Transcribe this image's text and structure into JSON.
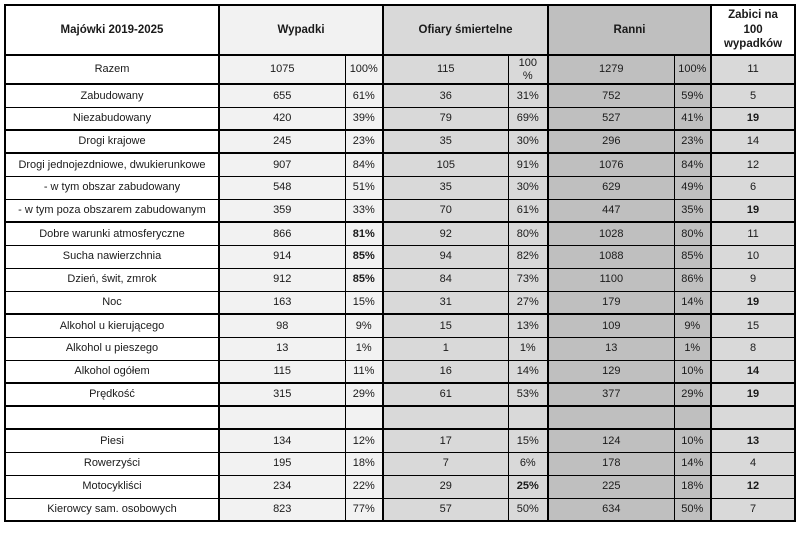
{
  "colors": {
    "border": "#000000",
    "text": "#1a1a1a",
    "col_label_bg": "#ffffff",
    "col_wypadki_bg": "#f2f2f2",
    "col_ofiary_bg": "#d9d9d9",
    "col_ranni_bg": "#bfbfbf",
    "col_zabici_bg": "#d9d9d9",
    "header_zabici_bg": "#ffffff"
  },
  "chart_data": {
    "type": "table",
    "title": "Majówki 2019-2025",
    "legend_position": "none",
    "column_groups": [
      {
        "label": "Majówki 2019-2025",
        "span": 1
      },
      {
        "label": "Wypadki",
        "span": 2
      },
      {
        "label": "Ofiary śmiertelne",
        "span": 2
      },
      {
        "label": "Ranni",
        "span": 2
      },
      {
        "label": "Zabici na\n100\nwypadków",
        "span": 1
      }
    ],
    "rows": [
      {
        "label": "Razem",
        "wypadki": "1075",
        "wypadki_pct": "100%",
        "ofiary": "115",
        "ofiary_pct": "100\n%",
        "ranni": "1279",
        "ranni_pct": "100%",
        "zabici": "11",
        "bold": [],
        "thick_bottom": true,
        "empty": false
      },
      {
        "label": "Zabudowany",
        "wypadki": "655",
        "wypadki_pct": "61%",
        "ofiary": "36",
        "ofiary_pct": "31%",
        "ranni": "752",
        "ranni_pct": "59%",
        "zabici": "5",
        "bold": [],
        "thick_bottom": false,
        "empty": false
      },
      {
        "label": "Niezabudowany",
        "wypadki": "420",
        "wypadki_pct": "39%",
        "ofiary": "79",
        "ofiary_pct": "69%",
        "ranni": "527",
        "ranni_pct": "41%",
        "zabici": "19",
        "bold": [
          "zabici"
        ],
        "thick_bottom": true,
        "empty": false
      },
      {
        "label": "Drogi krajowe",
        "wypadki": "245",
        "wypadki_pct": "23%",
        "ofiary": "35",
        "ofiary_pct": "30%",
        "ranni": "296",
        "ranni_pct": "23%",
        "zabici": "14",
        "bold": [],
        "thick_bottom": true,
        "empty": false
      },
      {
        "label": "Drogi jednojezdniowe, dwukierunkowe",
        "wypadki": "907",
        "wypadki_pct": "84%",
        "ofiary": "105",
        "ofiary_pct": "91%",
        "ranni": "1076",
        "ranni_pct": "84%",
        "zabici": "12",
        "bold": [],
        "thick_bottom": false,
        "empty": false
      },
      {
        "label": "- w tym obszar zabudowany",
        "wypadki": "548",
        "wypadki_pct": "51%",
        "ofiary": "35",
        "ofiary_pct": "30%",
        "ranni": "629",
        "ranni_pct": "49%",
        "zabici": "6",
        "bold": [],
        "thick_bottom": false,
        "empty": false
      },
      {
        "label": "- w tym poza obszarem zabudowanym",
        "wypadki": "359",
        "wypadki_pct": "33%",
        "ofiary": "70",
        "ofiary_pct": "61%",
        "ranni": "447",
        "ranni_pct": "35%",
        "zabici": "19",
        "bold": [
          "zabici"
        ],
        "thick_bottom": true,
        "empty": false
      },
      {
        "label": "Dobre warunki atmosferyczne",
        "wypadki": "866",
        "wypadki_pct": "81%",
        "ofiary": "92",
        "ofiary_pct": "80%",
        "ranni": "1028",
        "ranni_pct": "80%",
        "zabici": "11",
        "bold": [
          "wypadki_pct"
        ],
        "thick_bottom": false,
        "empty": false
      },
      {
        "label": "Sucha nawierzchnia",
        "wypadki": "914",
        "wypadki_pct": "85%",
        "ofiary": "94",
        "ofiary_pct": "82%",
        "ranni": "1088",
        "ranni_pct": "85%",
        "zabici": "10",
        "bold": [
          "wypadki_pct"
        ],
        "thick_bottom": false,
        "empty": false
      },
      {
        "label": "Dzień, świt, zmrok",
        "wypadki": "912",
        "wypadki_pct": "85%",
        "ofiary": "84",
        "ofiary_pct": "73%",
        "ranni": "1100",
        "ranni_pct": "86%",
        "zabici": "9",
        "bold": [
          "wypadki_pct"
        ],
        "thick_bottom": false,
        "empty": false
      },
      {
        "label": "Noc",
        "wypadki": "163",
        "wypadki_pct": "15%",
        "ofiary": "31",
        "ofiary_pct": "27%",
        "ranni": "179",
        "ranni_pct": "14%",
        "zabici": "19",
        "bold": [
          "zabici"
        ],
        "thick_bottom": true,
        "empty": false
      },
      {
        "label": "Alkohol u kierującego",
        "wypadki": "98",
        "wypadki_pct": "9%",
        "ofiary": "15",
        "ofiary_pct": "13%",
        "ranni": "109",
        "ranni_pct": "9%",
        "zabici": "15",
        "bold": [],
        "thick_bottom": false,
        "empty": false
      },
      {
        "label": "Alkohol u pieszego",
        "wypadki": "13",
        "wypadki_pct": "1%",
        "ofiary": "1",
        "ofiary_pct": "1%",
        "ranni": "13",
        "ranni_pct": "1%",
        "zabici": "8",
        "bold": [],
        "thick_bottom": false,
        "empty": false
      },
      {
        "label": "Alkohol ogółem",
        "wypadki": "115",
        "wypadki_pct": "11%",
        "ofiary": "16",
        "ofiary_pct": "14%",
        "ranni": "129",
        "ranni_pct": "10%",
        "zabici": "14",
        "bold": [
          "zabici"
        ],
        "thick_bottom": true,
        "empty": false
      },
      {
        "label": "Prędkość",
        "wypadki": "315",
        "wypadki_pct": "29%",
        "ofiary": "61",
        "ofiary_pct": "53%",
        "ranni": "377",
        "ranni_pct": "29%",
        "zabici": "19",
        "bold": [
          "zabici"
        ],
        "thick_bottom": true,
        "empty": false
      },
      {
        "label": "",
        "wypadki": "",
        "wypadki_pct": "",
        "ofiary": "",
        "ofiary_pct": "",
        "ranni": "",
        "ranni_pct": "",
        "zabici": "",
        "bold": [],
        "thick_bottom": true,
        "empty": true
      },
      {
        "label": "Piesi",
        "wypadki": "134",
        "wypadki_pct": "12%",
        "ofiary": "17",
        "ofiary_pct": "15%",
        "ranni": "124",
        "ranni_pct": "10%",
        "zabici": "13",
        "bold": [
          "zabici"
        ],
        "thick_bottom": false,
        "empty": false
      },
      {
        "label": "Rowerzyści",
        "wypadki": "195",
        "wypadki_pct": "18%",
        "ofiary": "7",
        "ofiary_pct": "6%",
        "ranni": "178",
        "ranni_pct": "14%",
        "zabici": "4",
        "bold": [],
        "thick_bottom": false,
        "empty": false
      },
      {
        "label": "Motocykliści",
        "wypadki": "234",
        "wypadki_pct": "22%",
        "ofiary": "29",
        "ofiary_pct": "25%",
        "ranni": "225",
        "ranni_pct": "18%",
        "zabici": "12",
        "bold": [
          "ofiary_pct",
          "zabici"
        ],
        "thick_bottom": false,
        "empty": false
      },
      {
        "label": "Kierowcy sam. osobowych",
        "wypadki": "823",
        "wypadki_pct": "77%",
        "ofiary": "57",
        "ofiary_pct": "50%",
        "ranni": "634",
        "ranni_pct": "50%",
        "zabici": "7",
        "bold": [],
        "thick_bottom": false,
        "empty": false
      }
    ]
  }
}
